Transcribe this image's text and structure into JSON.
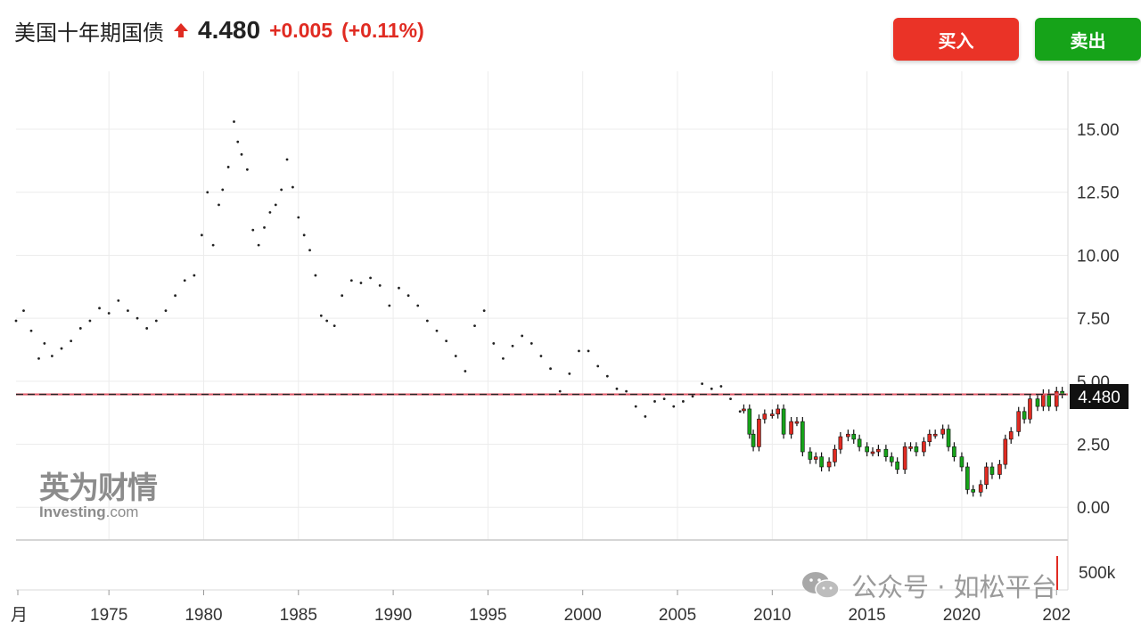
{
  "header": {
    "title": "美国十年期国债",
    "price": "4.480",
    "change": "+0.005",
    "change_pct": "(+0.11%)",
    "direction_icon": "up-arrow-icon"
  },
  "buttons": {
    "buy": "买入",
    "sell": "卖出"
  },
  "logo": {
    "cn": "英为财情",
    "en": "Investing",
    "en_suffix": ".com"
  },
  "watermark": {
    "text": "公众号 · 如松平台",
    "icon": "wechat-icon"
  },
  "colors": {
    "up": "#e02b22",
    "down": "#16a319",
    "buy": "#ea3327",
    "sell": "#16a319",
    "current_line": "#e05a6a"
  },
  "chart_data": {
    "type": "line",
    "x_ticks": [
      "月",
      "1975",
      "1980",
      "1985",
      "1990",
      "1995",
      "2000",
      "2005",
      "2010",
      "2015",
      "2020",
      "202"
    ],
    "y_ticks": [
      "0.00",
      "2.50",
      "5.00",
      "7.50",
      "10.00",
      "12.50",
      "15.00"
    ],
    "xlim": [
      1970.1,
      2025.6
    ],
    "ylim": [
      -1.3,
      17.3
    ],
    "current_value": 4.48,
    "current_label": "4.480",
    "volume_label": "500k",
    "grid": true,
    "series": [
      {
        "style": "dots",
        "x": [
          1970.1,
          1970.5,
          1970.9,
          1971.3,
          1971.6,
          1972.0,
          1972.5,
          1973.0,
          1973.5,
          1974.0,
          1974.5,
          1975.0,
          1975.5,
          1976.0,
          1976.5,
          1977.0,
          1977.5,
          1978.0,
          1978.5,
          1979.0,
          1979.5,
          1979.9,
          1980.2,
          1980.5,
          1980.8,
          1981.0,
          1981.3,
          1981.6,
          1981.8,
          1982.0,
          1982.3,
          1982.6,
          1982.9,
          1983.2,
          1983.5,
          1983.8,
          1984.1,
          1984.4,
          1984.7,
          1985.0,
          1985.3,
          1985.6,
          1985.9,
          1986.2,
          1986.5,
          1986.9,
          1987.3,
          1987.8,
          1988.3,
          1988.8,
          1989.3,
          1989.8,
          1990.3,
          1990.8,
          1991.3,
          1991.8,
          1992.3,
          1992.8,
          1993.3,
          1993.8,
          1994.3,
          1994.8,
          1995.3,
          1995.8,
          1996.3,
          1996.8,
          1997.3,
          1997.8,
          1998.3,
          1998.8,
          1999.3,
          1999.8,
          2000.3,
          2000.8,
          2001.3,
          2001.8,
          2002.3,
          2002.8,
          2003.3,
          2003.8,
          2004.3,
          2004.8,
          2005.3,
          2005.8,
          2006.3,
          2006.8,
          2007.3,
          2007.8,
          2008.3
        ],
        "y": [
          7.4,
          7.8,
          7.0,
          5.9,
          6.5,
          6.0,
          6.3,
          6.6,
          7.1,
          7.4,
          7.9,
          7.7,
          8.2,
          7.8,
          7.5,
          7.1,
          7.4,
          7.8,
          8.4,
          9.0,
          9.2,
          10.8,
          12.5,
          10.4,
          12.0,
          12.6,
          13.5,
          15.3,
          14.5,
          14.0,
          13.4,
          11.0,
          10.4,
          11.1,
          11.7,
          12.0,
          12.6,
          13.8,
          12.7,
          11.5,
          10.8,
          10.2,
          9.2,
          7.6,
          7.4,
          7.2,
          8.4,
          9.0,
          8.9,
          9.1,
          8.8,
          8.0,
          8.7,
          8.4,
          8.0,
          7.4,
          7.0,
          6.6,
          6.0,
          5.4,
          7.2,
          7.8,
          6.5,
          5.9,
          6.4,
          6.8,
          6.5,
          6.0,
          5.5,
          4.6,
          5.3,
          6.2,
          6.2,
          5.6,
          5.2,
          4.7,
          4.6,
          4.0,
          3.6,
          4.2,
          4.3,
          4.0,
          4.2,
          4.4,
          4.9,
          4.7,
          4.8,
          4.3,
          3.8
        ]
      },
      {
        "style": "candles",
        "x": [
          2008.5,
          2008.8,
          2009.0,
          2009.3,
          2009.6,
          2010.0,
          2010.3,
          2010.6,
          2011.0,
          2011.3,
          2011.6,
          2012.0,
          2012.3,
          2012.6,
          2013.0,
          2013.3,
          2013.6,
          2014.0,
          2014.3,
          2014.6,
          2015.0,
          2015.3,
          2015.6,
          2016.0,
          2016.3,
          2016.6,
          2017.0,
          2017.3,
          2017.6,
          2018.0,
          2018.3,
          2018.6,
          2019.0,
          2019.3,
          2019.6,
          2020.0,
          2020.3,
          2020.6,
          2021.0,
          2021.3,
          2021.6,
          2022.0,
          2022.3,
          2022.6,
          2023.0,
          2023.3,
          2023.6,
          2024.0,
          2024.3,
          2024.6,
          2025.0,
          2025.3
        ],
        "y": [
          3.9,
          2.9,
          2.4,
          3.5,
          3.7,
          3.7,
          3.9,
          2.9,
          3.4,
          3.4,
          2.2,
          1.9,
          2.0,
          1.6,
          1.8,
          2.3,
          2.8,
          2.9,
          2.7,
          2.4,
          2.2,
          2.2,
          2.3,
          2.0,
          1.8,
          1.5,
          2.4,
          2.4,
          2.2,
          2.6,
          2.9,
          2.9,
          3.1,
          2.4,
          2.0,
          1.6,
          0.7,
          0.6,
          0.9,
          1.6,
          1.3,
          1.7,
          2.7,
          3.0,
          3.8,
          3.5,
          4.3,
          4.0,
          4.5,
          4.0,
          4.6,
          4.5
        ]
      }
    ]
  }
}
